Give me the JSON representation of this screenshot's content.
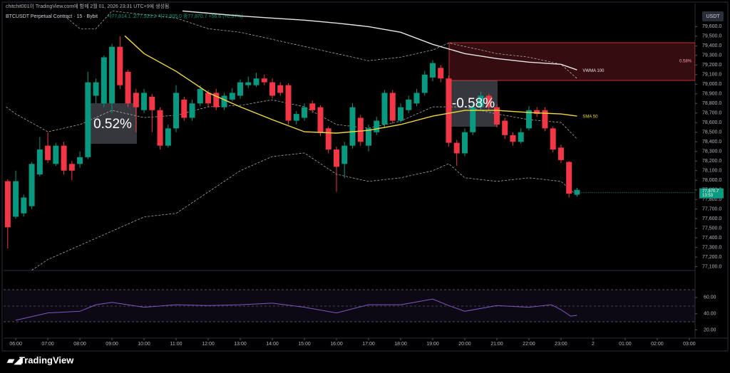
{
  "header": {
    "title": "chitchit001이 TradingView.com에 함께 2월 01, 2026 23:31 UTC+9에 생성됨",
    "footer": "TradingView"
  },
  "chart_data": [
    {
      "type": "candlestick",
      "title": "BTCUSDT Perpetual Contract · 15 · Bybit",
      "subtitle": "시77,814.1 고77,923.2 저77,805.0 종77,870.7 +56.6 (+0.07%)",
      "currency": "USDT",
      "up_color": "#089981",
      "down_color": "#f23645",
      "x": [
        5.75,
        6,
        6.25,
        6.5,
        6.75,
        7,
        7.25,
        7.5,
        7.75,
        8,
        8.25,
        8.5,
        8.75,
        9,
        9.25,
        9.5,
        9.75,
        10,
        10.25,
        10.5,
        10.75,
        11,
        11.25,
        11.5,
        11.75,
        12,
        12.25,
        12.5,
        12.75,
        13,
        13.25,
        13.5,
        13.75,
        14,
        14.25,
        14.5,
        14.75,
        15,
        15.25,
        15.5,
        15.75,
        16,
        16.25,
        16.5,
        16.75,
        17,
        17.25,
        17.5,
        17.75,
        18,
        18.25,
        18.5,
        18.75,
        19,
        19.25,
        19.5,
        19.75,
        20,
        20.25,
        20.5,
        20.75,
        21,
        21.25,
        21.5,
        21.75,
        22,
        22.25,
        22.5,
        22.75,
        23,
        23.25,
        23.5
      ],
      "open": [
        77990,
        77620,
        77655,
        77730,
        78060,
        78360,
        78170,
        78360,
        78170,
        78170,
        78240,
        78880,
        78800,
        78800,
        79390,
        79130,
        78910,
        78730,
        78870,
        78730,
        78360,
        78540,
        78840,
        78650,
        78800,
        78910,
        78910,
        78760,
        78840,
        78880,
        78990,
        78990,
        79060,
        79020,
        78990,
        78990,
        78620,
        78650,
        78800,
        78760,
        78540,
        78320,
        78170,
        78360,
        78650,
        78360,
        78500,
        78580,
        78910,
        78620,
        78730,
        78800,
        78910,
        79070,
        79170,
        79060,
        78390,
        78280,
        78500,
        78760,
        78880,
        78760,
        78620,
        78470,
        78400,
        78540,
        78730,
        78730,
        78540,
        78340,
        78190,
        77850
      ],
      "high": [
        78010,
        78100,
        77850,
        78190,
        78450,
        78500,
        78390,
        78400,
        78200,
        78300,
        79130,
        79060,
        79300,
        79420,
        79500,
        79150,
        78950,
        78950,
        78900,
        78760,
        78580,
        78990,
        78870,
        78840,
        78990,
        78940,
        78950,
        78910,
        78960,
        79050,
        79080,
        79120,
        79100,
        79060,
        79020,
        79010,
        78720,
        78800,
        78830,
        78780,
        78560,
        78350,
        78400,
        78800,
        78680,
        78580,
        78660,
        78940,
        78940,
        78800,
        78880,
        78950,
        79140,
        79250,
        79200,
        79090,
        78420,
        78540,
        78800,
        78920,
        78900,
        78790,
        78650,
        78500,
        78540,
        78770,
        78760,
        78760,
        78560,
        78370,
        78200,
        77920
      ],
      "low": [
        77290,
        77600,
        77620,
        77700,
        78040,
        78180,
        78150,
        78060,
        78000,
        78130,
        78220,
        78800,
        78760,
        78700,
        78950,
        78760,
        78500,
        78700,
        78500,
        78320,
        78340,
        78500,
        78620,
        78620,
        78770,
        78760,
        78730,
        78730,
        78820,
        78850,
        78960,
        78970,
        78990,
        78850,
        78880,
        78580,
        78580,
        78620,
        78700,
        78460,
        78280,
        77880,
        78020,
        78330,
        78360,
        78300,
        78470,
        78550,
        78590,
        78600,
        78700,
        78770,
        78880,
        79030,
        79020,
        78350,
        78150,
        78250,
        78470,
        78730,
        78730,
        78550,
        78430,
        78360,
        78380,
        78520,
        78660,
        78510,
        78290,
        78180,
        77820,
        77830
      ],
      "close": [
        77510,
        77990,
        77820,
        78170,
        78320,
        78210,
        78360,
        78100,
        78100,
        78240,
        79020,
        79020,
        79280,
        79390,
        78990,
        78800,
        78760,
        78910,
        78730,
        78360,
        78540,
        78910,
        78650,
        78800,
        78950,
        78800,
        78760,
        78880,
        78910,
        79020,
        79020,
        79060,
        79020,
        78880,
        78910,
        78620,
        78690,
        78760,
        78730,
        78500,
        78320,
        78140,
        78360,
        78760,
        78400,
        78540,
        78620,
        78910,
        78620,
        78760,
        78840,
        78910,
        79100,
        79220,
        79060,
        78390,
        78280,
        78500,
        78760,
        78880,
        78760,
        78580,
        78470,
        78400,
        78500,
        78730,
        78690,
        78540,
        78320,
        78210,
        77860,
        77900
      ],
      "series": [
        {
          "name": "SMA 50",
          "color": "#f2d93b",
          "x": [
            9.4,
            10,
            11,
            12,
            13,
            14,
            15,
            16,
            17,
            18,
            19,
            20,
            21,
            22,
            23,
            23.5
          ],
          "values": [
            79504,
            79319,
            79134,
            78912,
            78764,
            78631,
            78505,
            78491,
            78520,
            78580,
            78668,
            78727,
            78727,
            78705,
            78690,
            78668
          ]
        },
        {
          "name": "VWMA 100",
          "color": "#e6e6e6",
          "x": [
            11.2,
            12,
            13,
            14,
            15,
            16,
            17,
            18,
            19,
            20,
            21,
            22,
            23,
            23.5
          ],
          "values": [
            79763,
            79740,
            79711,
            79689,
            79667,
            79637,
            79600,
            79541,
            79415,
            79319,
            79267,
            79230,
            79208,
            79149
          ]
        }
      ],
      "bands": [
        {
          "color": "#bdbdbd",
          "x": [
            7.6,
            8,
            8.5,
            9,
            10,
            11,
            12,
            13,
            14,
            15,
            16,
            17,
            18,
            19,
            19.5,
            20,
            21,
            22,
            23,
            23.5
          ],
          "values": [
            79689,
            79578,
            79578,
            79763,
            79726,
            79689,
            79578,
            79541,
            79467,
            79393,
            79319,
            79245,
            79282,
            79356,
            79430,
            79393,
            79319,
            79282,
            79208,
            79060
          ]
        },
        {
          "color": "#bdbdbd",
          "x": [
            5.7,
            6,
            7,
            8,
            9,
            10,
            11,
            12,
            13,
            14,
            15,
            16,
            17,
            18,
            19,
            20,
            21,
            22,
            23,
            23.5
          ],
          "values": [
            78764,
            78690,
            78505,
            78580,
            78727,
            78653,
            78676,
            78764,
            78779,
            78838,
            78764,
            78580,
            78542,
            78616,
            78764,
            78764,
            78690,
            78631,
            78602,
            78431
          ]
        },
        {
          "color": "#bdbdbd",
          "x": [
            6.5,
            7,
            8,
            9,
            10,
            11,
            12,
            13,
            14,
            15,
            16,
            17,
            18,
            19,
            19.5,
            20,
            21,
            22,
            23,
            23.5
          ],
          "values": [
            77063,
            77174,
            77322,
            77470,
            77618,
            77655,
            77877,
            78099,
            78247,
            78284,
            78062,
            77988,
            78025,
            78099,
            78173,
            78025,
            77988,
            78025,
            77988,
            77840
          ]
        }
      ],
      "annotations": [
        "0.52%",
        "-0.58%",
        "0.58%"
      ],
      "last_price": {
        "value": 77870.7,
        "label": "77,870.7"
      },
      "countdown": "13:53",
      "xlim": [
        5.62,
        27.18
      ],
      "xticks": [
        {
          "value": 6,
          "label": "06:00"
        },
        {
          "value": 7,
          "label": "07:00"
        },
        {
          "value": 8,
          "label": "08:00"
        },
        {
          "value": 9,
          "label": "09:00"
        },
        {
          "value": 10,
          "label": "10:00"
        },
        {
          "value": 11,
          "label": "11:00"
        },
        {
          "value": 12,
          "label": "12:00"
        },
        {
          "value": 13,
          "label": "13:00"
        },
        {
          "value": 14,
          "label": "14:00"
        },
        {
          "value": 15,
          "label": "15:00"
        },
        {
          "value": 16,
          "label": "16:00"
        },
        {
          "value": 17,
          "label": "17:00"
        },
        {
          "value": 18,
          "label": "18:00"
        },
        {
          "value": 19,
          "label": "19:00"
        },
        {
          "value": 20,
          "label": "20:00"
        },
        {
          "value": 21,
          "label": "21:00"
        },
        {
          "value": 22,
          "label": "22:00"
        },
        {
          "value": 23,
          "label": "23:00"
        },
        {
          "value": 24,
          "label": "2"
        },
        {
          "value": 25,
          "label": "01:00"
        },
        {
          "value": 26,
          "label": "02:00"
        },
        {
          "value": 27,
          "label": "03:00"
        }
      ],
      "ylim": [
        77060,
        79840
      ],
      "yticks": [
        {
          "value": 77100,
          "label": "77,100.0"
        },
        {
          "value": 77200,
          "label": "77,200.0"
        },
        {
          "value": 77300,
          "label": "77,300.0"
        },
        {
          "value": 77400,
          "label": "77,400.0"
        },
        {
          "value": 77500,
          "label": "77,500.0"
        },
        {
          "value": 77600,
          "label": "77,600.0"
        },
        {
          "value": 77700,
          "label": "77,700.0"
        },
        {
          "value": 77800,
          "label": "77,800.0"
        },
        {
          "value": 77900,
          "label": "77,900.0"
        },
        {
          "value": 78000,
          "label": "78,000.0"
        },
        {
          "value": 78100,
          "label": "78,100.0"
        },
        {
          "value": 78200,
          "label": "78,200.0"
        },
        {
          "value": 78300,
          "label": "78,300.0"
        },
        {
          "value": 78400,
          "label": "78,400.0"
        },
        {
          "value": 78500,
          "label": "78,500.0"
        },
        {
          "value": 78600,
          "label": "78,600.0"
        },
        {
          "value": 78700,
          "label": "78,700.0"
        },
        {
          "value": 78800,
          "label": "78,800.0"
        },
        {
          "value": 78900,
          "label": "78,900.0"
        },
        {
          "value": 79000,
          "label": "79,000.0"
        },
        {
          "value": 79100,
          "label": "79,100.0"
        },
        {
          "value": 79200,
          "label": "79,200.0"
        },
        {
          "value": 79300,
          "label": "79,300.0"
        },
        {
          "value": 79400,
          "label": "79,400.0"
        },
        {
          "value": 79500,
          "label": "79,500.0"
        },
        {
          "value": 79600,
          "label": "79,600.0"
        }
      ]
    },
    {
      "type": "line",
      "color": "#7e57c2",
      "x": [
        6,
        7,
        8,
        8.5,
        9,
        10,
        11,
        12,
        13,
        14,
        15,
        16,
        17,
        18,
        19,
        19.5,
        20,
        21,
        22,
        22.7,
        23,
        23.3,
        23.5
      ],
      "values": [
        32,
        41,
        43,
        51,
        54,
        48,
        51,
        50,
        51,
        53,
        48,
        41,
        51,
        51,
        58,
        50,
        43,
        50,
        48,
        51,
        45,
        37,
        38
      ],
      "ylim": [
        10,
        80
      ],
      "yticks": [
        {
          "value": 60,
          "label": "60.00"
        },
        {
          "value": 40,
          "label": "40.00"
        },
        {
          "value": 20,
          "label": "20.00"
        }
      ]
    }
  ]
}
